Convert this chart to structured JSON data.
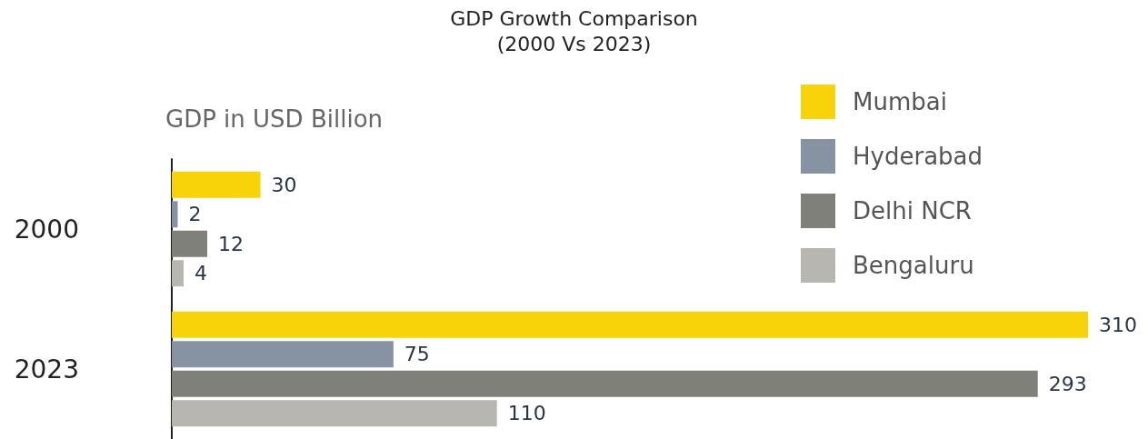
{
  "chart_data": {
    "type": "bar",
    "orientation": "horizontal",
    "title": "GDP Growth Comparison",
    "subtitle": "(2000 Vs 2023)",
    "xlabel": "GDP in USD Billion",
    "categories": [
      "2000",
      "2023"
    ],
    "series": [
      {
        "name": "Mumbai",
        "color": "#f9d30a",
        "values": [
          30,
          310
        ]
      },
      {
        "name": "Hyderabad",
        "color": "#8793a3",
        "values": [
          2,
          75
        ]
      },
      {
        "name": "Delhi NCR",
        "color": "#80807a",
        "values": [
          12,
          293
        ]
      },
      {
        "name": "Bengaluru",
        "color": "#b8b6b0",
        "values": [
          4,
          110
        ]
      }
    ],
    "data_labels": true,
    "legend": "top right"
  }
}
